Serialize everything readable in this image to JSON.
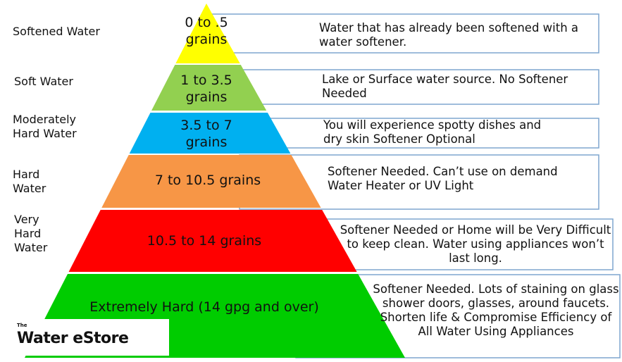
{
  "levels": [
    {
      "name": "Softened Water",
      "range": "0 to .5 grains",
      "description": "Water that has already been softened with a water softener.",
      "color": "#ffff00"
    },
    {
      "name": "Soft Water",
      "range": "1 to 3.5 grains",
      "description": "Lake or Surface water source.  No Softener Needed",
      "color": "#92d050"
    },
    {
      "name": "Moderately Hard Water",
      "range": "3.5 to 7 grains",
      "description": "You will experience spotty dishes and dry skin  Softener Optional",
      "color": "#00b0f0"
    },
    {
      "name": "Hard Water",
      "range": "7 to 10.5 grains",
      "description": "Softener Needed.  Can’t use on demand  Water Heater  or UV Light",
      "color": "#f79646"
    },
    {
      "name": "Very Hard Water",
      "range": "10.5 to 14 grains",
      "description": "Softener Needed or Home will be Very Difficult to keep clean.  Water using appliances won’t last long.",
      "color": "#ff0000"
    },
    {
      "name": "",
      "range": "Extremely Hard (14 gpg and over)",
      "description": "Softener Needed.  Lots of staining on glass shower doors, glasses, around faucets.  Shorten life & Compromise Efficiency of All Water Using Appliances",
      "color": "#00cc00"
    }
  ],
  "logo": {
    "the": "The",
    "name": "Water eStore",
    "accent": "#1a8fd6"
  },
  "box_border_color": "#7fa6cf"
}
